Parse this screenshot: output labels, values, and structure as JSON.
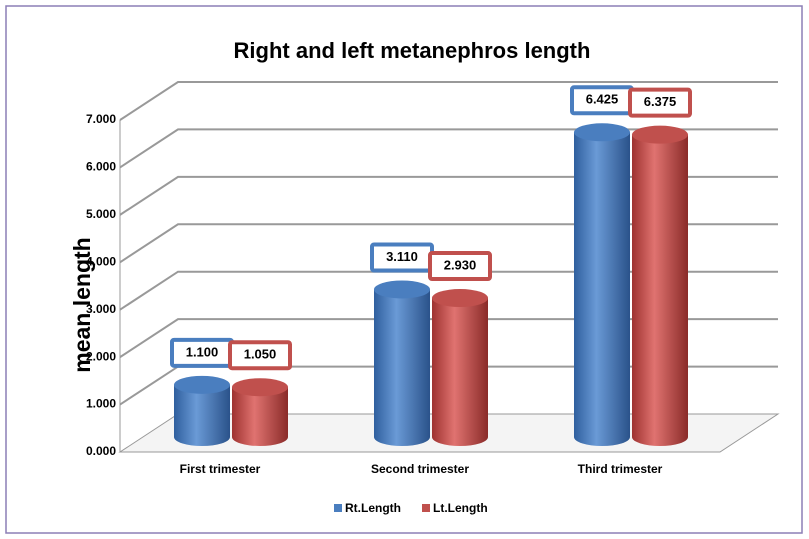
{
  "chart_data": {
    "type": "bar3d",
    "title": "Right and left metanephros length",
    "ylabel": "mean length",
    "categories": [
      "First trimester",
      "Second  trimester",
      "Third trimester"
    ],
    "series": [
      {
        "name": "Rt.Length",
        "color": "#4a7ebf",
        "values": [
          1.1,
          3.11,
          6.425
        ],
        "value_labels": [
          "1.100",
          "3.110",
          "6.425"
        ]
      },
      {
        "name": "Lt.Length",
        "color": "#c0504d",
        "values": [
          1.05,
          2.93,
          6.375
        ],
        "value_labels": [
          "1.050",
          "2.930",
          "6.375"
        ]
      }
    ],
    "ylim": [
      0,
      7
    ],
    "yticks": [
      {
        "value": 0,
        "label": "0.000"
      },
      {
        "value": 1,
        "label": "1.000"
      },
      {
        "value": 2,
        "label": "2.000"
      },
      {
        "value": 3,
        "label": "3.000"
      },
      {
        "value": 4,
        "label": "4.000"
      },
      {
        "value": 5,
        "label": "5.000"
      },
      {
        "value": 6,
        "label": "6.000"
      },
      {
        "value": 7,
        "label": "7.000"
      }
    ],
    "grid": true,
    "legend": "bottom"
  }
}
